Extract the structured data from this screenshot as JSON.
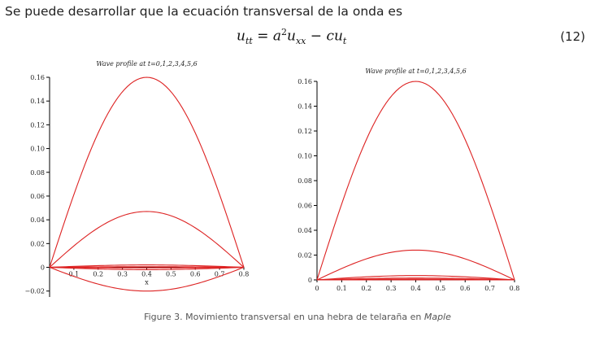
{
  "text": {
    "intro": "Se puede desarrollar que la ecuación transversal de la onda es",
    "equation_number": "(12)",
    "caption_prefix": "Figure 3. Movimiento transversal en una hebra de telaraña en ",
    "caption_italic": "Maple"
  },
  "equation": {
    "lhs": "u",
    "lhs_sub": "tt",
    "eq": " = ",
    "a": "a",
    "a_sup": "2",
    "u2": "u",
    "u2_sub": "xx",
    "minus": " − ",
    "c": "cu",
    "c_sub": "t"
  },
  "colors": {
    "curve": "#dd2222",
    "axis": "#000000"
  },
  "chart_data": [
    {
      "type": "line",
      "title": "Wave profile at t=0,1,2,3,4,5,6",
      "xlabel": "x",
      "ylabel": "",
      "xlim": [
        0,
        0.8
      ],
      "ylim": [
        -0.025,
        0.16
      ],
      "xticks": [
        "0.1",
        "0.2",
        "0.3",
        "0.4",
        "0.5",
        "0.6",
        "0.7",
        "0.8"
      ],
      "yticks": [
        "−0.02",
        "0",
        "0.02",
        "0.04",
        "0.06",
        "0.08",
        "0.10",
        "0.12",
        "0.14",
        "0.16"
      ],
      "ytick_values": [
        -0.02,
        0,
        0.02,
        0.04,
        0.06,
        0.08,
        0.1,
        0.12,
        0.14,
        0.16
      ],
      "series_peaks": [
        0.16,
        0.047,
        0.002,
        -0.002,
        0.0005,
        -0.0005,
        -0.02
      ],
      "grid": false
    },
    {
      "type": "line",
      "title": "Wave profile at t=0,1,2,3,4,5,6",
      "xlabel": "",
      "ylabel": "",
      "xlim": [
        0,
        0.8
      ],
      "ylim": [
        0,
        0.16
      ],
      "xticks": [
        "0",
        "0.1",
        "0.2",
        "0.3",
        "0.4",
        "0.5",
        "0.6",
        "0.7",
        "0.8"
      ],
      "yticks": [
        "0",
        "0.02",
        "0.04",
        "0.06",
        "0.08",
        "0.10",
        "0.12",
        "0.14",
        "0.16"
      ],
      "ytick_values": [
        0,
        0.02,
        0.04,
        0.06,
        0.08,
        0.1,
        0.12,
        0.14,
        0.16
      ],
      "series_peaks": [
        0.16,
        0.024,
        0.0035,
        0.0015,
        0.0006,
        0.0002,
        0.0001
      ],
      "grid": false
    }
  ]
}
